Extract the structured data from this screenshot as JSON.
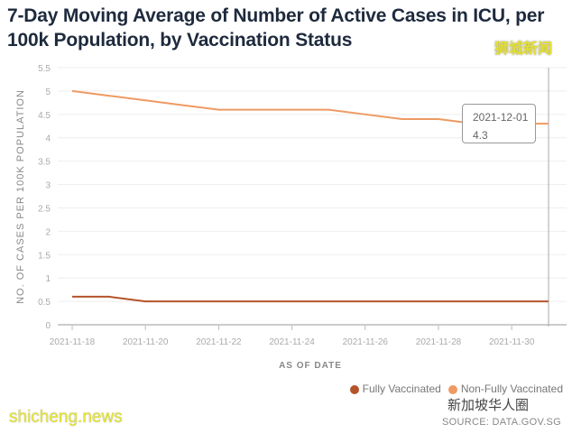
{
  "chart_data": {
    "type": "line",
    "title": "7-Day Moving Average of Number of Active Cases in ICU, per 100k Population, by Vaccination Status",
    "xlabel": "AS OF DATE",
    "ylabel": "NO. OF CASES PER 100K POPULATION",
    "ylim": [
      0,
      5.5
    ],
    "yticks": [
      "0",
      "0.5",
      "1",
      "1.5",
      "2",
      "2.5",
      "3",
      "3.5",
      "4",
      "4.5",
      "5",
      "5.5"
    ],
    "x": [
      "2021-11-18",
      "2021-11-19",
      "2021-11-20",
      "2021-11-21",
      "2021-11-22",
      "2021-11-23",
      "2021-11-24",
      "2021-11-25",
      "2021-11-26",
      "2021-11-27",
      "2021-11-28",
      "2021-11-29",
      "2021-11-30",
      "2021-12-01"
    ],
    "xtick_labels": [
      "2021-11-18",
      "2021-11-20",
      "2021-11-22",
      "2021-11-24",
      "2021-11-26",
      "2021-11-28",
      "2021-11-30"
    ],
    "series": [
      {
        "name": "Fully Vaccinated",
        "color": "#b5532a",
        "values": [
          0.6,
          0.6,
          0.5,
          0.5,
          0.5,
          0.5,
          0.5,
          0.5,
          0.5,
          0.5,
          0.5,
          0.5,
          0.5,
          0.5
        ]
      },
      {
        "name": "Non-Fully Vaccinated",
        "color": "#ef9a62",
        "values": [
          5.0,
          4.9,
          4.8,
          4.7,
          4.6,
          4.6,
          4.6,
          4.6,
          4.5,
          4.4,
          4.4,
          4.3,
          4.3,
          4.3
        ]
      }
    ],
    "grid": true,
    "legend": "bottom-right",
    "tooltip": {
      "date": "2021-12-01",
      "value": "4.3"
    }
  },
  "source": "SOURCE: DATA.GOV.SG",
  "watermarks": {
    "cn_top": "狮城新闻",
    "en_bottom": "shicheng.news",
    "wechat": "新加坡华人圈"
  }
}
